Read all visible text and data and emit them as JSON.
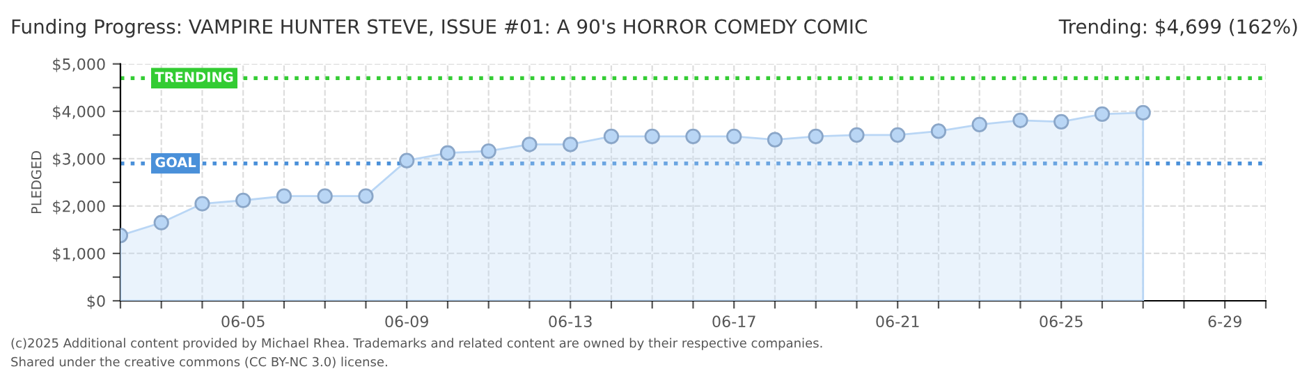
{
  "chart_data": {
    "type": "area",
    "title": "Funding Progress: VAMPIRE HUNTER STEVE, ISSUE #01: A 90's HORROR COMEDY COMIC",
    "subtitle": "Trending: $4,699 (162%)",
    "ylabel": "PLEDGED",
    "annotations": [
      "(c)2025 Additional content provided by Michael Rhea. Trademarks and related content are owned by their respective companies.",
      "Shared under the creative commons (CC BY-NC 3.0) license."
    ],
    "x": [
      "2025-06-02",
      "2025-06-03",
      "2025-06-04",
      "2025-06-05",
      "2025-06-06",
      "2025-06-07",
      "2025-06-08",
      "2025-06-09",
      "2025-06-10",
      "2025-06-11",
      "2025-06-12",
      "2025-06-13",
      "2025-06-14",
      "2025-06-15",
      "2025-06-16",
      "2025-06-17",
      "2025-06-18",
      "2025-06-19",
      "2025-06-20",
      "2025-06-21",
      "2025-06-22",
      "2025-06-23",
      "2025-06-24",
      "2025-06-25",
      "2025-06-26",
      "2025-06-27"
    ],
    "series": [
      {
        "color": "#b9d6f5",
        "values": [
          1380,
          1650,
          2050,
          2120,
          2210,
          2210,
          2210,
          2960,
          3120,
          3160,
          3300,
          3300,
          3470,
          3470,
          3470,
          3470,
          3400,
          3470,
          3500,
          3500,
          3580,
          3720,
          3810,
          3780,
          3940,
          3970
        ]
      }
    ],
    "xlim": [
      "2025-06-02",
      "2025-06-30"
    ],
    "xticks": [
      {
        "value": "2025-06-02",
        "label": null
      },
      {
        "value": "2025-06-03",
        "label": null
      },
      {
        "value": "2025-06-04",
        "label": null
      },
      {
        "value": "2025-06-05",
        "label": "06-05"
      },
      {
        "value": "2025-06-06",
        "label": null
      },
      {
        "value": "2025-06-07",
        "label": null
      },
      {
        "value": "2025-06-08",
        "label": null
      },
      {
        "value": "2025-06-09",
        "label": "06-09"
      },
      {
        "value": "2025-06-10",
        "label": null
      },
      {
        "value": "2025-06-11",
        "label": null
      },
      {
        "value": "2025-06-12",
        "label": null
      },
      {
        "value": "2025-06-13",
        "label": "06-13"
      },
      {
        "value": "2025-06-14",
        "label": null
      },
      {
        "value": "2025-06-15",
        "label": null
      },
      {
        "value": "2025-06-16",
        "label": null
      },
      {
        "value": "2025-06-17",
        "label": "06-17"
      },
      {
        "value": "2025-06-18",
        "label": null
      },
      {
        "value": "2025-06-19",
        "label": null
      },
      {
        "value": "2025-06-20",
        "label": null
      },
      {
        "value": "2025-06-21",
        "label": "06-21"
      },
      {
        "value": "2025-06-22",
        "label": null
      },
      {
        "value": "2025-06-23",
        "label": null
      },
      {
        "value": "2025-06-24",
        "label": null
      },
      {
        "value": "2025-06-25",
        "label": "06-25"
      },
      {
        "value": "2025-06-26",
        "label": null
      },
      {
        "value": "2025-06-27",
        "label": null
      },
      {
        "value": "2025-06-28",
        "label": null
      },
      {
        "value": "2025-06-29",
        "label": "6-29"
      },
      {
        "value": "2025-06-30",
        "label": null
      }
    ],
    "ylim": [
      0,
      5000
    ],
    "yticks": [
      {
        "value": 0,
        "label": "$0"
      },
      {
        "value": 500,
        "label": null
      },
      {
        "value": 1000,
        "label": "$1,000"
      },
      {
        "value": 1500,
        "label": null
      },
      {
        "value": 2000,
        "label": "$2,000"
      },
      {
        "value": 2500,
        "label": null
      },
      {
        "value": 3000,
        "label": "$3,000"
      },
      {
        "value": 3500,
        "label": null
      },
      {
        "value": 4000,
        "label": "$4,000"
      },
      {
        "value": 4500,
        "label": null
      },
      {
        "value": 5000,
        "label": "$5,000"
      }
    ],
    "ref_lines": [
      {
        "axis": "y",
        "value": 4699,
        "label": "TRENDING",
        "color": "#33cc33",
        "line_style": "dotted"
      },
      {
        "axis": "y",
        "value": 2900,
        "label": "GOAL",
        "color": "#4a90d9",
        "line_style": "dotted"
      }
    ],
    "grid": true,
    "marker": "circle",
    "line_style": "solid",
    "legend": false
  }
}
